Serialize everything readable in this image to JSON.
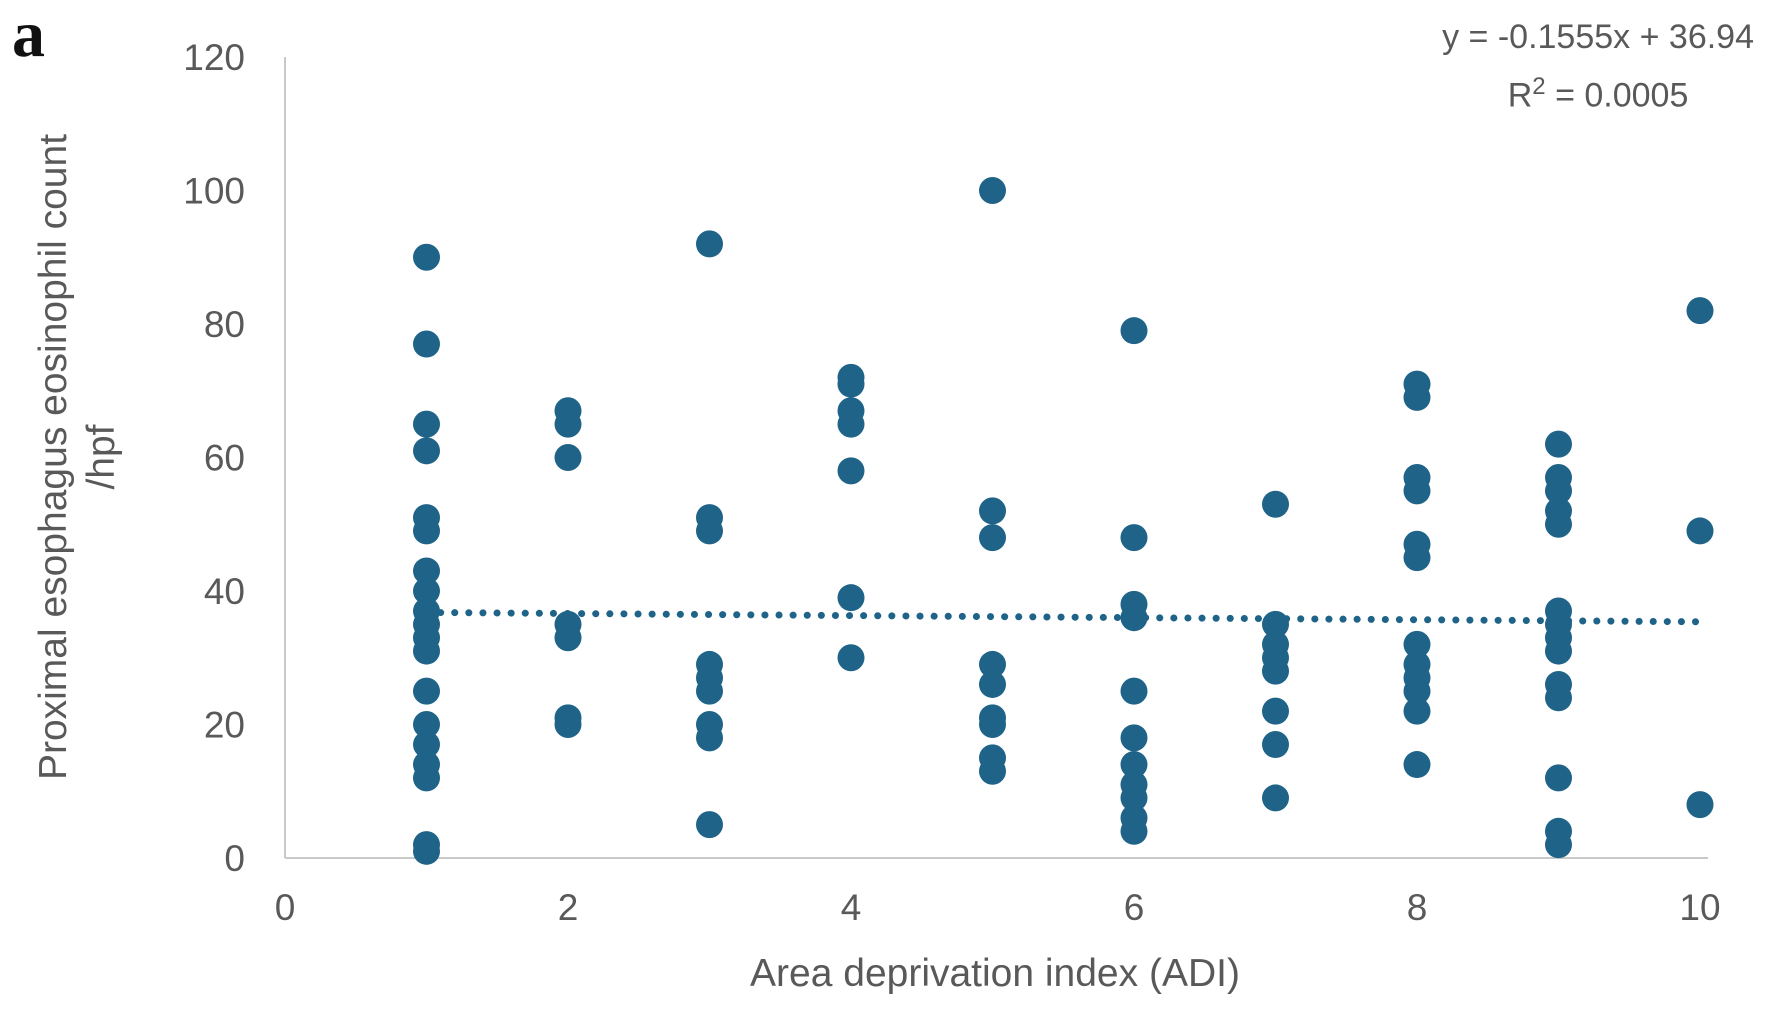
{
  "panel_label": "a",
  "equation": {
    "line1": "y = -0.1555x + 36.94",
    "r_base": "R",
    "r_sup": "2",
    "r_rest": " = 0.0005"
  },
  "chart_data": {
    "type": "scatter",
    "title": "",
    "xlabel": "Area deprivation index (ADI)",
    "ylabel": "Proximal esophagus eosinophil count /hpf",
    "ylabel_line1": "Proximal esophagus eosinophil count",
    "ylabel_line2": "/hpf",
    "xlim": [
      0,
      10
    ],
    "ylim": [
      0,
      120
    ],
    "xticks": [
      0,
      2,
      4,
      6,
      8,
      10
    ],
    "yticks": [
      0,
      20,
      40,
      60,
      80,
      100,
      120
    ],
    "grid": false,
    "legend": "none",
    "marker_color": "#1f6488",
    "text_color": "#595959",
    "axis_color": "#c9c9c9",
    "trendline": {
      "style": "dotted",
      "color": "#1f6488",
      "slope": -0.1555,
      "intercept": 36.94,
      "x_start": 1,
      "x_end": 10,
      "equation": "y = -0.1555x + 36.94",
      "r_squared": 0.0005
    },
    "series": [
      {
        "name": "Proximal esophagus eosinophil count /hpf",
        "points": [
          [
            1,
            90
          ],
          [
            1,
            77
          ],
          [
            1,
            65
          ],
          [
            1,
            61
          ],
          [
            1,
            51
          ],
          [
            1,
            49
          ],
          [
            1,
            43
          ],
          [
            1,
            40
          ],
          [
            1,
            37
          ],
          [
            1,
            35
          ],
          [
            1,
            33
          ],
          [
            1,
            31
          ],
          [
            1,
            25
          ],
          [
            1,
            20
          ],
          [
            1,
            17
          ],
          [
            1,
            14
          ],
          [
            1,
            12
          ],
          [
            1,
            2
          ],
          [
            1,
            1
          ],
          [
            2,
            67
          ],
          [
            2,
            65
          ],
          [
            2,
            60
          ],
          [
            2,
            35
          ],
          [
            2,
            33
          ],
          [
            2,
            21
          ],
          [
            2,
            20
          ],
          [
            3,
            92
          ],
          [
            3,
            51
          ],
          [
            3,
            49
          ],
          [
            3,
            29
          ],
          [
            3,
            27
          ],
          [
            3,
            25
          ],
          [
            3,
            20
          ],
          [
            3,
            18
          ],
          [
            3,
            5
          ],
          [
            4,
            72
          ],
          [
            4,
            71
          ],
          [
            4,
            67
          ],
          [
            4,
            65
          ],
          [
            4,
            58
          ],
          [
            4,
            39
          ],
          [
            4,
            30
          ],
          [
            5,
            100
          ],
          [
            5,
            52
          ],
          [
            5,
            48
          ],
          [
            5,
            29
          ],
          [
            5,
            26
          ],
          [
            5,
            21
          ],
          [
            5,
            20
          ],
          [
            5,
            15
          ],
          [
            5,
            13
          ],
          [
            6,
            79
          ],
          [
            6,
            48
          ],
          [
            6,
            38
          ],
          [
            6,
            36
          ],
          [
            6,
            25
          ],
          [
            6,
            18
          ],
          [
            6,
            14
          ],
          [
            6,
            11
          ],
          [
            6,
            9
          ],
          [
            6,
            6
          ],
          [
            6,
            4
          ],
          [
            7,
            53
          ],
          [
            7,
            35
          ],
          [
            7,
            32
          ],
          [
            7,
            30
          ],
          [
            7,
            28
          ],
          [
            7,
            22
          ],
          [
            7,
            17
          ],
          [
            7,
            9
          ],
          [
            8,
            71
          ],
          [
            8,
            69
          ],
          [
            8,
            57
          ],
          [
            8,
            55
          ],
          [
            8,
            47
          ],
          [
            8,
            45
          ],
          [
            8,
            32
          ],
          [
            8,
            29
          ],
          [
            8,
            27
          ],
          [
            8,
            25
          ],
          [
            8,
            22
          ],
          [
            8,
            14
          ],
          [
            9,
            62
          ],
          [
            9,
            57
          ],
          [
            9,
            55
          ],
          [
            9,
            52
          ],
          [
            9,
            50
          ],
          [
            9,
            37
          ],
          [
            9,
            35
          ],
          [
            9,
            33
          ],
          [
            9,
            31
          ],
          [
            9,
            26
          ],
          [
            9,
            24
          ],
          [
            9,
            12
          ],
          [
            9,
            4
          ],
          [
            9,
            2
          ],
          [
            10,
            82
          ],
          [
            10,
            49
          ],
          [
            10,
            8
          ]
        ]
      }
    ]
  }
}
